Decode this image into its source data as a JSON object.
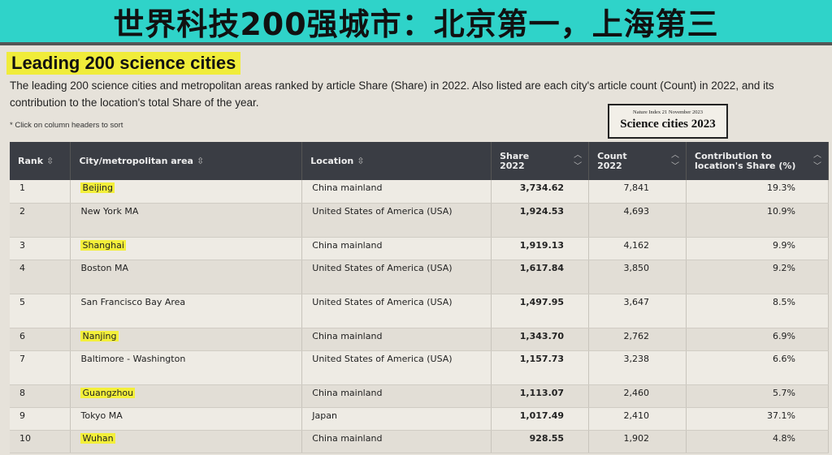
{
  "banner": "世界科技200强城市：北京第一，上海第三",
  "title": "Leading 200 science cities",
  "description": "The leading 200 science cities and metropolitan areas ranked by article Share (Share) in 2022. Also listed are each city's article count (Count) in 2022, and its contribution to the location's total Share of the year.",
  "note": "* Click on column headers to sort",
  "stamp": {
    "line1": "Nature Index   21 November 2023",
    "line2": "Science cities 2023"
  },
  "highlight_color": "#f3ef3a",
  "columns": [
    "Rank",
    "City/metropolitan area",
    "Location",
    "Share 2022",
    "Count 2022",
    "Contribution to location's Share (%)"
  ],
  "rows": [
    {
      "rank": "1",
      "city": "Beijing",
      "location": "China mainland",
      "share": "3,734.62",
      "count": "7,841",
      "contribution": "19.3%",
      "highlighted": true
    },
    {
      "rank": "2",
      "city": "New York MA",
      "location": "United States of America (USA)",
      "share": "1,924.53",
      "count": "4,693",
      "contribution": "10.9%",
      "highlighted": false
    },
    {
      "rank": "3",
      "city": "Shanghai",
      "location": "China mainland",
      "share": "1,919.13",
      "count": "4,162",
      "contribution": "9.9%",
      "highlighted": true
    },
    {
      "rank": "4",
      "city": "Boston MA",
      "location": "United States of America (USA)",
      "share": "1,617.84",
      "count": "3,850",
      "contribution": "9.2%",
      "highlighted": false
    },
    {
      "rank": "5",
      "city": "San Francisco Bay Area",
      "location": "United States of America (USA)",
      "share": "1,497.95",
      "count": "3,647",
      "contribution": "8.5%",
      "highlighted": false
    },
    {
      "rank": "6",
      "city": "Nanjing",
      "location": "China mainland",
      "share": "1,343.70",
      "count": "2,762",
      "contribution": "6.9%",
      "highlighted": true
    },
    {
      "rank": "7",
      "city": "Baltimore - Washington",
      "location": "United States of America (USA)",
      "share": "1,157.73",
      "count": "3,238",
      "contribution": "6.6%",
      "highlighted": false
    },
    {
      "rank": "8",
      "city": "Guangzhou",
      "location": "China mainland",
      "share": "1,113.07",
      "count": "2,460",
      "contribution": "5.7%",
      "highlighted": true
    },
    {
      "rank": "9",
      "city": "Tokyo MA",
      "location": "Japan",
      "share": "1,017.49",
      "count": "2,410",
      "contribution": "37.1%",
      "highlighted": false
    },
    {
      "rank": "10",
      "city": "Wuhan",
      "location": "China mainland",
      "share": "928.55",
      "count": "1,902",
      "contribution": "4.8%",
      "highlighted": true
    }
  ]
}
